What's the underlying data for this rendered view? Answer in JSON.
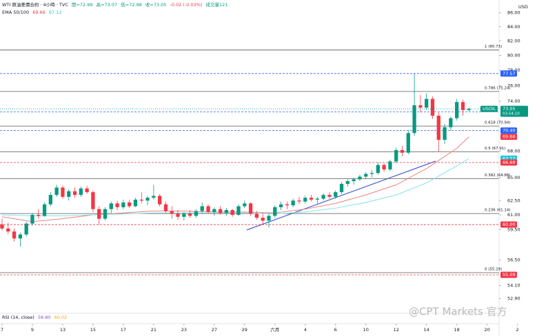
{
  "chart_data": {
    "type": "candlestick",
    "title": "WTI 原油差價合約 · 4小時 · TVC",
    "ohlc_legend": [
      "開=72.99",
      "高=73.07",
      "低=72.98",
      "收=73.05",
      "-0.02 (-0.03%)",
      "成交量121"
    ],
    "indicator_legend": {
      "name": "EMA 50/100",
      "values": [
        "69.66",
        "67.12"
      ]
    },
    "rsi_legend": {
      "name": "RSI (14, close)",
      "values": [
        "58.80",
        "60.02"
      ]
    },
    "currency": "USD",
    "symbol": "USOIL",
    "last_price": {
      "value": 73.05,
      "label": "73.05",
      "countdown": "03:54:10",
      "color": "#089981"
    },
    "watermark": "@CPT Markets 官方",
    "log_scale": true,
    "grid": false,
    "up_color": "#089981",
    "down_color": "#f23645",
    "ylim": [
      51.6,
      87.9
    ],
    "yticks": [
      {
        "value": 86,
        "label": "86.00"
      },
      {
        "value": 84,
        "label": "84.00"
      },
      {
        "value": 82,
        "label": "82.00"
      },
      {
        "value": 80,
        "label": "80.00"
      },
      {
        "value": 78,
        "label": "78.00"
      },
      {
        "value": 76,
        "label": "76.00"
      },
      {
        "value": 74,
        "label": "74.00"
      },
      {
        "value": 68,
        "label": "68.00"
      },
      {
        "value": 65,
        "label": "65.00"
      },
      {
        "value": 62.5,
        "label": "62.50"
      },
      {
        "value": 61,
        "label": "61.00"
      },
      {
        "value": 59.5,
        "label": "59.50"
      },
      {
        "value": 56.5,
        "label": "56.50"
      },
      {
        "value": 54.1,
        "label": "54.10"
      },
      {
        "value": 52.9,
        "label": "52.90"
      }
    ],
    "xlim": [
      0,
      88
    ],
    "xticks": [
      {
        "value": 0,
        "label": "7"
      },
      {
        "value": 5,
        "label": "9"
      },
      {
        "value": 10,
        "label": "13"
      },
      {
        "value": 15,
        "label": "15"
      },
      {
        "value": 20,
        "label": "17"
      },
      {
        "value": 25,
        "label": "21"
      },
      {
        "value": 30,
        "label": "23"
      },
      {
        "value": 35,
        "label": "27"
      },
      {
        "value": 40,
        "label": "29"
      },
      {
        "value": 45,
        "label": "六月"
      },
      {
        "value": 50,
        "label": "4"
      },
      {
        "value": 55,
        "label": "6"
      },
      {
        "value": 60,
        "label": "10"
      },
      {
        "value": 65,
        "label": "12"
      },
      {
        "value": 70,
        "label": "14"
      },
      {
        "value": 75,
        "label": "18"
      },
      {
        "value": 80,
        "label": "20"
      },
      {
        "value": 85,
        "label": "2"
      }
    ],
    "open": [
      60.0,
      59.6,
      59.3,
      58.6,
      59.0,
      60.1,
      61.0,
      60.9,
      62.1,
      63.1,
      63.9,
      62.9,
      63.5,
      63.1,
      63.8,
      63.4,
      61.6,
      60.6,
      61.6,
      62.2,
      61.8,
      62.3,
      61.9,
      62.6,
      62.5,
      62.8,
      63.0,
      62.1,
      61.4,
      61.1,
      60.8,
      61.1,
      60.9,
      61.4,
      61.9,
      61.3,
      61.6,
      61.2,
      61.5,
      61.0,
      61.9,
      62.2,
      61.1,
      60.7,
      60.4,
      60.9,
      61.8,
      62.1,
      62.0,
      62.5,
      62.4,
      62.8,
      62.6,
      62.7,
      63.1,
      62.9,
      63.4,
      64.3,
      64.6,
      64.8,
      65.1,
      65.4,
      65.5,
      66.4,
      65.9,
      66.8,
      68.1,
      67.8,
      70.1,
      73.5,
      73.2,
      74.3,
      72.2,
      69.3,
      70.8,
      71.9,
      73.9,
      72.9
    ],
    "high": [
      60.6,
      60.2,
      59.6,
      59.2,
      60.3,
      61.2,
      61.6,
      62.3,
      63.4,
      64.2,
      64.1,
      63.7,
      63.9,
      64.0,
      64.1,
      63.6,
      61.9,
      61.8,
      62.4,
      62.5,
      62.6,
      62.6,
      62.8,
      63.4,
      63.0,
      64.2,
      63.2,
      62.4,
      61.9,
      61.5,
      61.3,
      61.5,
      61.6,
      62.3,
      62.1,
      61.8,
      61.9,
      61.7,
      61.6,
      62.1,
      62.5,
      62.3,
      61.4,
      61.2,
      61.1,
      62.0,
      62.4,
      62.4,
      62.7,
      62.9,
      63.0,
      63.1,
      62.9,
      63.3,
      63.4,
      63.6,
      64.5,
      64.8,
      65.0,
      65.3,
      65.6,
      65.8,
      66.7,
      66.6,
      67.0,
      68.4,
      68.6,
      70.4,
      77.57,
      74.8,
      75.0,
      74.6,
      72.6,
      71.2,
      72.1,
      74.3,
      74.2,
      73.2
    ],
    "low": [
      59.4,
      59.0,
      58.3,
      57.8,
      58.8,
      59.9,
      60.6,
      60.8,
      61.9,
      62.9,
      62.7,
      62.5,
      62.8,
      62.9,
      63.2,
      61.3,
      60.0,
      60.4,
      61.2,
      61.5,
      61.6,
      61.7,
      61.8,
      62.2,
      62.0,
      62.6,
      61.9,
      61.2,
      60.6,
      60.5,
      60.4,
      60.7,
      60.7,
      61.2,
      61.1,
      60.9,
      61.0,
      60.9,
      60.8,
      60.9,
      61.7,
      60.9,
      60.5,
      60.0,
      59.7,
      60.7,
      61.5,
      61.6,
      61.8,
      62.1,
      62.2,
      62.4,
      62.2,
      62.5,
      62.7,
      62.7,
      63.2,
      64.0,
      64.2,
      64.6,
      64.8,
      65.0,
      65.3,
      65.6,
      65.7,
      66.6,
      67.4,
      67.6,
      69.8,
      72.6,
      72.9,
      71.8,
      67.9,
      68.8,
      70.4,
      71.6,
      72.2,
      72.7
    ],
    "close": [
      59.6,
      59.3,
      58.6,
      59.0,
      60.1,
      61.0,
      60.9,
      62.1,
      63.1,
      63.9,
      62.9,
      63.5,
      63.1,
      63.8,
      63.4,
      61.6,
      60.6,
      61.6,
      62.2,
      61.8,
      62.3,
      61.9,
      62.6,
      62.5,
      62.8,
      63.0,
      62.1,
      61.4,
      61.1,
      60.8,
      61.1,
      60.9,
      61.4,
      61.9,
      61.3,
      61.6,
      61.2,
      61.5,
      61.0,
      61.9,
      62.2,
      61.1,
      60.7,
      60.4,
      60.9,
      61.8,
      62.1,
      62.0,
      62.5,
      62.4,
      62.8,
      62.6,
      62.7,
      63.1,
      62.9,
      63.4,
      64.3,
      64.6,
      64.8,
      65.1,
      65.4,
      65.5,
      66.4,
      65.9,
      66.8,
      68.1,
      67.8,
      70.1,
      73.5,
      73.2,
      74.3,
      72.2,
      69.3,
      70.8,
      71.9,
      73.9,
      72.9,
      73.05
    ],
    "series": [
      {
        "name": "EMA 50",
        "color": "#f08080",
        "x": [
          0,
          5,
          10,
          15,
          20,
          25,
          30,
          35,
          40,
          45,
          50,
          55,
          60,
          65,
          70,
          75,
          77
        ],
        "values": [
          60.8,
          60.3,
          60.6,
          61.0,
          61.2,
          61.4,
          61.4,
          61.3,
          61.3,
          61.2,
          61.6,
          62.2,
          63.1,
          64.2,
          66.0,
          68.3,
          69.66
        ]
      },
      {
        "name": "EMA 100",
        "color": "#7fe3ea",
        "x": [
          0,
          5,
          10,
          15,
          20,
          25,
          30,
          35,
          40,
          45,
          50,
          55,
          60,
          65,
          70,
          75,
          77
        ],
        "values": [
          61.0,
          60.9,
          60.9,
          61.0,
          61.1,
          61.2,
          61.2,
          61.2,
          61.2,
          61.1,
          61.3,
          61.7,
          62.3,
          63.1,
          64.4,
          66.3,
          67.12
        ]
      }
    ],
    "fib_levels": [
      {
        "label": "1 (80.73)",
        "value": 80.73
      },
      {
        "label": "0.786 (75.24)",
        "value": 75.24
      },
      {
        "label": "0.618 (70.94)",
        "value": 70.94
      },
      {
        "label": "0.5 (67.91)",
        "value": 67.91
      },
      {
        "label": "0.382 (64.88)",
        "value": 64.88
      },
      {
        "label": "0.236 (61.14)",
        "value": 61.14
      },
      {
        "label": "0 (55.29)",
        "value": 55.29
      }
    ],
    "price_lines": [
      {
        "label": "77.57",
        "value": 77.57,
        "color": "#2962ff",
        "dashed": true
      },
      {
        "label": "72.68",
        "value": 72.68,
        "color": "#2962ff",
        "dashed": true
      },
      {
        "label": "70.40",
        "value": 70.4,
        "color": "#2962ff",
        "dashed": true
      },
      {
        "label": "69.66",
        "value": 69.66,
        "color": "#f23645",
        "dashed": false
      },
      {
        "label": "67.12",
        "value": 67.12,
        "color": "#26c6da",
        "dashed": false
      },
      {
        "label": "66.68",
        "value": 66.68,
        "color": "#f23645",
        "dashed": true
      },
      {
        "label": "60.00",
        "value": 60.0,
        "color": "#f23645",
        "dashed": true
      },
      {
        "label": "55.09",
        "value": 55.09,
        "color": "#f23645",
        "dashed": true
      }
    ]
  }
}
